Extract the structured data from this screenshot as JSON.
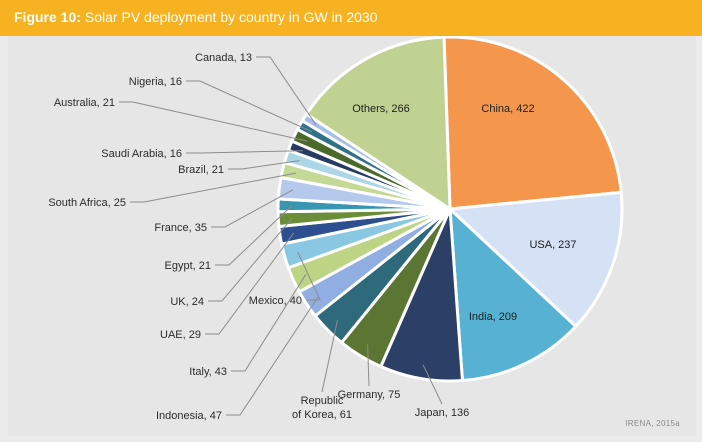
{
  "header": {
    "figure_number": "Figure 10:",
    "title": "Solar PV deployment by country in GW in 2030"
  },
  "source": "IRENA, 2015a",
  "chart_data": {
    "type": "pie",
    "title": "Solar PV deployment by country in GW in 2030",
    "units": "GW",
    "slices": [
      {
        "label": "China",
        "value": 422,
        "display": "China, 422",
        "color": "#f5964d",
        "inside": true
      },
      {
        "label": "USA",
        "value": 237,
        "display": "USA, 237",
        "color": "#d5e1f4",
        "inside": true
      },
      {
        "label": "India",
        "value": 209,
        "display": "India, 209",
        "color": "#56b1d3",
        "inside": true
      },
      {
        "label": "Japan",
        "value": 136,
        "display": "Japan, 136",
        "color": "#2b3f67",
        "inside": false
      },
      {
        "label": "Germany",
        "value": 75,
        "display": "Germany, 75",
        "color": "#5b7632",
        "inside": false
      },
      {
        "label": "Republic of Korea",
        "value": 61,
        "display": "Republic of Korea, 61",
        "display_lines": [
          "Republic",
          "of Korea, 61"
        ],
        "color": "#2e6a7c",
        "inside": false
      },
      {
        "label": "Indonesia",
        "value": 47,
        "display": "Indonesia, 47",
        "color": "#90aee2",
        "inside": false
      },
      {
        "label": "Italy",
        "value": 43,
        "display": "Italy, 43",
        "color": "#bcd484",
        "inside": false
      },
      {
        "label": "Mexico",
        "value": 40,
        "display": "Mexico, 40",
        "color": "#89c7e2",
        "inside": false
      },
      {
        "label": "UAE",
        "value": 29,
        "display": "UAE, 29",
        "color": "#2d4f8f",
        "inside": false
      },
      {
        "label": "UK",
        "value": 24,
        "display": "UK, 24",
        "color": "#6a8d3a",
        "inside": false
      },
      {
        "label": "Egypt",
        "value": 21,
        "display": "Egypt, 21",
        "color": "#3896b3",
        "inside": false
      },
      {
        "label": "France",
        "value": 35,
        "display": "France, 35",
        "color": "#b4c9ec",
        "inside": false
      },
      {
        "label": "South Africa",
        "value": 25,
        "display": "South Africa, 25",
        "color": "#c4d996",
        "inside": false
      },
      {
        "label": "Brazil",
        "value": 21,
        "display": "Brazil, 21",
        "color": "#aad6e8",
        "inside": false
      },
      {
        "label": "Saudi Arabia",
        "value": 16,
        "display": "Saudi Arabia, 16",
        "color": "#273a63",
        "inside": false
      },
      {
        "label": "Australia",
        "value": 21,
        "display": "Australia, 21",
        "color": "#4a6a2a",
        "inside": false
      },
      {
        "label": "Nigeria",
        "value": 16,
        "display": "Nigeria, 16",
        "color": "#2f7288",
        "inside": false
      },
      {
        "label": "Canada",
        "value": 13,
        "display": "Canada, 13",
        "color": "#a5bfea",
        "inside": false
      },
      {
        "label": "Others",
        "value": 266,
        "display": "Others, 266",
        "color": "#bfd291",
        "inside": true
      }
    ]
  }
}
